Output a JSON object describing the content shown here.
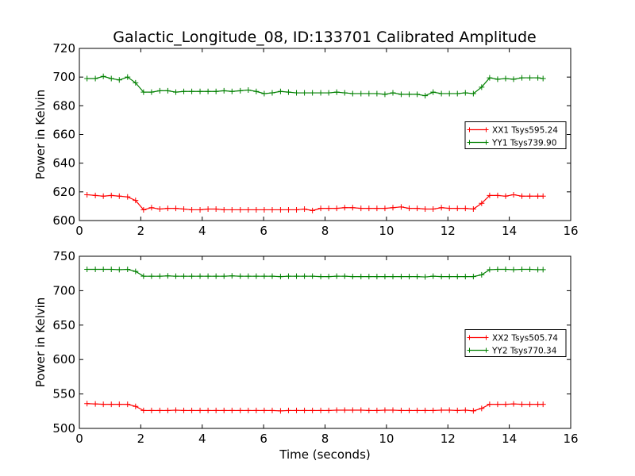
{
  "figure": {
    "title": "Galactic_Longitude_08, ID:133701 Calibrated Amplitude",
    "background": "#ffffff"
  },
  "chart_data": [
    {
      "type": "line",
      "title": "",
      "xlabel": "",
      "ylabel": "Power in Kelvin",
      "xlim": [
        0,
        16
      ],
      "ylim": [
        600,
        720
      ],
      "xticks": [
        0,
        2,
        4,
        6,
        8,
        10,
        12,
        14,
        16
      ],
      "yticks": [
        600,
        620,
        640,
        660,
        680,
        700,
        720
      ],
      "grid": false,
      "legend": {
        "placement": "right"
      },
      "x": [
        0.25,
        0.52,
        0.78,
        1.04,
        1.3,
        1.57,
        1.83,
        2.09,
        2.35,
        2.62,
        2.88,
        3.14,
        3.4,
        3.66,
        3.93,
        4.19,
        4.45,
        4.71,
        4.97,
        5.24,
        5.5,
        5.76,
        6.02,
        6.28,
        6.55,
        6.81,
        7.07,
        7.33,
        7.59,
        7.86,
        8.12,
        8.38,
        8.64,
        8.9,
        9.17,
        9.43,
        9.69,
        9.95,
        10.21,
        10.48,
        10.74,
        11.0,
        11.26,
        11.52,
        11.79,
        12.05,
        12.31,
        12.57,
        12.83,
        13.1,
        13.36,
        13.62,
        13.88,
        14.14,
        14.41,
        14.67,
        14.93,
        15.1
      ],
      "series": [
        {
          "name": "XX1 Tsys595.24",
          "color": "#ff0000",
          "values": [
            618,
            617.5,
            617,
            617.5,
            617,
            616.5,
            614,
            607.5,
            609,
            608,
            608.5,
            608.5,
            608,
            607.5,
            607.5,
            608,
            608,
            607.5,
            607.5,
            607.5,
            607.5,
            607.5,
            607.5,
            607.5,
            607.5,
            607.5,
            607.5,
            608,
            607,
            608.5,
            608.5,
            608.5,
            609,
            609,
            608.5,
            608.5,
            608.5,
            608.5,
            609,
            609.5,
            608.5,
            608.5,
            608,
            608,
            609,
            608.5,
            608.5,
            608.5,
            608,
            612,
            617.5,
            617.5,
            617,
            618,
            617,
            617,
            617,
            617
          ]
        },
        {
          "name": "YY1 Tsys739.90",
          "color": "#008000",
          "values": [
            699,
            699,
            700.5,
            699,
            698,
            700,
            696,
            689.5,
            689.5,
            690.5,
            690.5,
            689.5,
            690,
            690,
            690,
            690,
            690,
            690.5,
            690,
            690.5,
            691,
            690,
            688.5,
            689,
            690,
            689.5,
            689,
            689,
            689,
            689,
            689,
            689.5,
            689,
            688.5,
            688.5,
            688.5,
            688.5,
            688,
            689,
            688,
            688,
            688,
            687,
            689.5,
            688.5,
            688.5,
            688.5,
            689,
            688.5,
            693,
            699.5,
            698.5,
            699,
            698.5,
            699.5,
            699.5,
            699.5,
            699
          ]
        }
      ]
    },
    {
      "type": "line",
      "title": "",
      "xlabel": "Time (seconds)",
      "ylabel": "Power in Kelvin",
      "xlim": [
        0,
        16
      ],
      "ylim": [
        500,
        750
      ],
      "xticks": [
        0,
        2,
        4,
        6,
        8,
        10,
        12,
        14,
        16
      ],
      "yticks": [
        500,
        550,
        600,
        650,
        700,
        750
      ],
      "grid": false,
      "legend": {
        "placement": "right"
      },
      "x": [
        0.25,
        0.52,
        0.78,
        1.04,
        1.3,
        1.57,
        1.83,
        2.09,
        2.35,
        2.62,
        2.88,
        3.14,
        3.4,
        3.66,
        3.93,
        4.19,
        4.45,
        4.71,
        4.97,
        5.24,
        5.5,
        5.76,
        6.02,
        6.28,
        6.55,
        6.81,
        7.07,
        7.33,
        7.59,
        7.86,
        8.12,
        8.38,
        8.64,
        8.9,
        9.17,
        9.43,
        9.69,
        9.95,
        10.21,
        10.48,
        10.74,
        11.0,
        11.26,
        11.52,
        11.79,
        12.05,
        12.31,
        12.57,
        12.83,
        13.1,
        13.36,
        13.62,
        13.88,
        14.14,
        14.41,
        14.67,
        14.93,
        15.1
      ],
      "series": [
        {
          "name": "XX2 Tsys505.74",
          "color": "#ff0000",
          "values": [
            536,
            535.5,
            535,
            535,
            535,
            535,
            532,
            526,
            526,
            526,
            526,
            526.5,
            526,
            526,
            526,
            526,
            526,
            526,
            526,
            526,
            526,
            526,
            526,
            526,
            525.5,
            526,
            526,
            526,
            526,
            526,
            526,
            526.5,
            526.5,
            526.5,
            526.5,
            526,
            526,
            526.5,
            526.5,
            526,
            526,
            526,
            526,
            526,
            526.5,
            526.5,
            526,
            526.5,
            525.5,
            529,
            535,
            535,
            535,
            535.5,
            535,
            535,
            535,
            535
          ]
        },
        {
          "name": "YY2 Tsys770.34",
          "color": "#008000",
          "values": [
            731,
            731,
            731,
            731,
            730.5,
            731,
            728,
            721,
            721,
            721,
            721.5,
            721,
            721,
            721,
            721,
            721,
            721,
            721,
            721.5,
            721,
            721,
            721,
            721,
            721,
            720.5,
            721,
            721,
            721,
            721,
            720.5,
            720.5,
            721,
            721,
            720.5,
            720.5,
            720.5,
            720.5,
            720.5,
            720.5,
            720.5,
            720.5,
            720.5,
            720,
            721,
            720.5,
            720.5,
            720.5,
            720.5,
            720.5,
            723,
            730.5,
            731,
            731,
            730.5,
            731,
            731,
            730.5,
            730.5
          ]
        }
      ]
    }
  ]
}
